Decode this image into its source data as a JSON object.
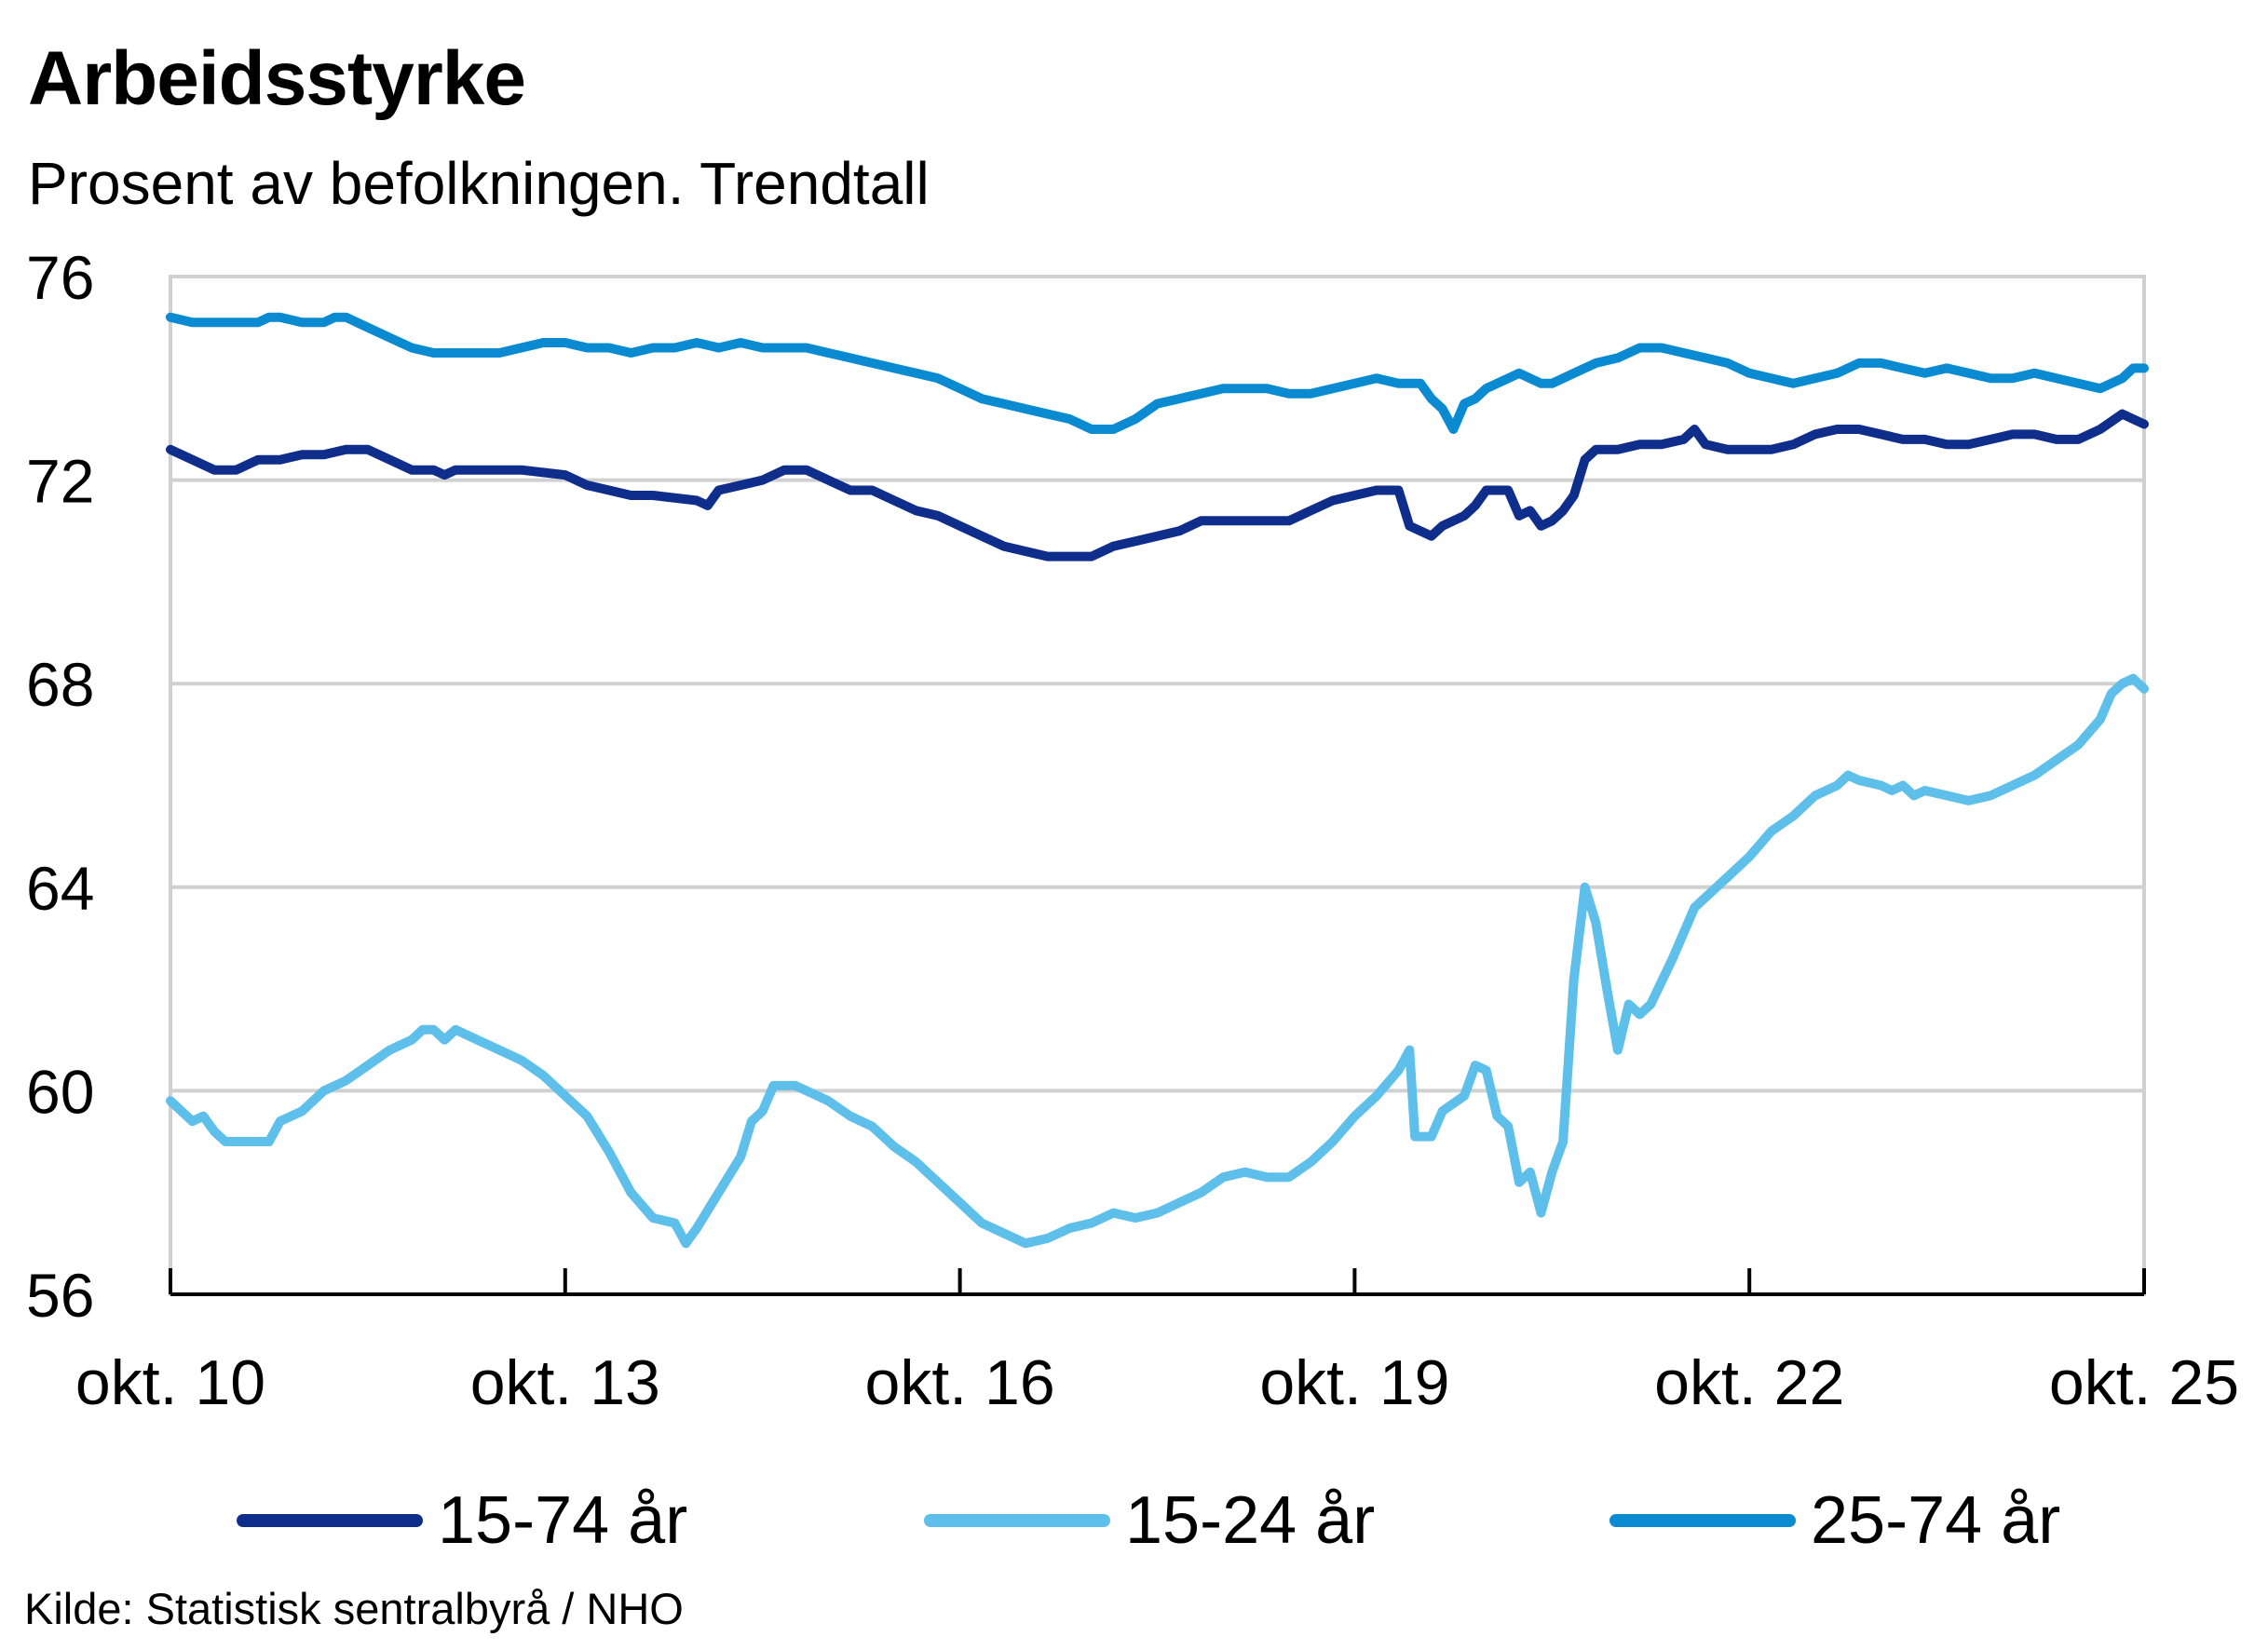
{
  "chart_data": {
    "type": "line",
    "title": "Arbeidsstyrke",
    "subtitle": "Prosent av befolkningen. Trendtall",
    "source": "Kilde: Statistisk sentralbyrå / NHO",
    "ylim": [
      56,
      76
    ],
    "yticks": [
      56,
      60,
      64,
      68,
      72,
      76
    ],
    "xlim": [
      0,
      180
    ],
    "xticks": [
      {
        "x": 0,
        "label": "okt. 10"
      },
      {
        "x": 36,
        "label": "okt. 13"
      },
      {
        "x": 72,
        "label": "okt. 16"
      },
      {
        "x": 108,
        "label": "okt. 19"
      },
      {
        "x": 144,
        "label": "okt. 22"
      },
      {
        "x": 180,
        "label": "okt. 25"
      }
    ],
    "grid": true,
    "legend_position": "bottom",
    "series": [
      {
        "name": "15-74 år",
        "color": "#0f2d8a",
        "points": [
          [
            0,
            72.6
          ],
          [
            2,
            72.4
          ],
          [
            4,
            72.2
          ],
          [
            6,
            72.2
          ],
          [
            8,
            72.4
          ],
          [
            10,
            72.4
          ],
          [
            12,
            72.5
          ],
          [
            14,
            72.5
          ],
          [
            16,
            72.6
          ],
          [
            18,
            72.6
          ],
          [
            20,
            72.4
          ],
          [
            22,
            72.2
          ],
          [
            24,
            72.2
          ],
          [
            25,
            72.1
          ],
          [
            26,
            72.2
          ],
          [
            28,
            72.2
          ],
          [
            32,
            72.2
          ],
          [
            36,
            72.1
          ],
          [
            38,
            71.9
          ],
          [
            40,
            71.8
          ],
          [
            42,
            71.7
          ],
          [
            44,
            71.7
          ],
          [
            48,
            71.6
          ],
          [
            49,
            71.5
          ],
          [
            50,
            71.8
          ],
          [
            52,
            71.9
          ],
          [
            54,
            72.0
          ],
          [
            56,
            72.2
          ],
          [
            58,
            72.2
          ],
          [
            60,
            72.0
          ],
          [
            62,
            71.8
          ],
          [
            64,
            71.8
          ],
          [
            66,
            71.6
          ],
          [
            68,
            71.4
          ],
          [
            70,
            71.3
          ],
          [
            72,
            71.1
          ],
          [
            74,
            70.9
          ],
          [
            76,
            70.7
          ],
          [
            78,
            70.6
          ],
          [
            80,
            70.5
          ],
          [
            84,
            70.5
          ],
          [
            86,
            70.7
          ],
          [
            88,
            70.8
          ],
          [
            90,
            70.9
          ],
          [
            92,
            71.0
          ],
          [
            94,
            71.2
          ],
          [
            96,
            71.2
          ],
          [
            98,
            71.2
          ],
          [
            100,
            71.2
          ],
          [
            102,
            71.2
          ],
          [
            104,
            71.4
          ],
          [
            106,
            71.6
          ],
          [
            108,
            71.7
          ],
          [
            110,
            71.8
          ],
          [
            112,
            71.8
          ],
          [
            113,
            71.1
          ],
          [
            115,
            70.9
          ],
          [
            116,
            71.1
          ],
          [
            118,
            71.3
          ],
          [
            119,
            71.5
          ],
          [
            120,
            71.8
          ],
          [
            122,
            71.8
          ],
          [
            123,
            71.3
          ],
          [
            124,
            71.4
          ],
          [
            125,
            71.1
          ],
          [
            126,
            71.2
          ],
          [
            127,
            71.4
          ],
          [
            128,
            71.7
          ],
          [
            129,
            72.4
          ],
          [
            130,
            72.6
          ],
          [
            132,
            72.6
          ],
          [
            134,
            72.7
          ],
          [
            136,
            72.7
          ],
          [
            138,
            72.8
          ],
          [
            139,
            73.0
          ],
          [
            140,
            72.7
          ],
          [
            142,
            72.6
          ],
          [
            144,
            72.6
          ],
          [
            146,
            72.6
          ],
          [
            148,
            72.7
          ],
          [
            150,
            72.9
          ],
          [
            152,
            73.0
          ],
          [
            154,
            73.0
          ],
          [
            156,
            72.9
          ],
          [
            158,
            72.8
          ],
          [
            160,
            72.8
          ],
          [
            162,
            72.7
          ],
          [
            164,
            72.7
          ],
          [
            166,
            72.8
          ],
          [
            168,
            72.9
          ],
          [
            170,
            72.9
          ],
          [
            172,
            72.8
          ],
          [
            174,
            72.8
          ],
          [
            176,
            73.0
          ],
          [
            178,
            73.3
          ],
          [
            180,
            73.1
          ]
        ]
      },
      {
        "name": "15-24 år",
        "color": "#5ec0ea",
        "points": [
          [
            0,
            59.8
          ],
          [
            1,
            59.6
          ],
          [
            2,
            59.4
          ],
          [
            3,
            59.5
          ],
          [
            4,
            59.2
          ],
          [
            5,
            59.0
          ],
          [
            6,
            59.0
          ],
          [
            8,
            59.0
          ],
          [
            9,
            59.0
          ],
          [
            10,
            59.4
          ],
          [
            12,
            59.6
          ],
          [
            14,
            60.0
          ],
          [
            16,
            60.2
          ],
          [
            18,
            60.5
          ],
          [
            20,
            60.8
          ],
          [
            22,
            61.0
          ],
          [
            23,
            61.2
          ],
          [
            24,
            61.2
          ],
          [
            25,
            61.0
          ],
          [
            26,
            61.2
          ],
          [
            28,
            61.0
          ],
          [
            30,
            60.8
          ],
          [
            32,
            60.6
          ],
          [
            34,
            60.3
          ],
          [
            36,
            59.9
          ],
          [
            38,
            59.5
          ],
          [
            40,
            58.8
          ],
          [
            42,
            58.0
          ],
          [
            44,
            57.5
          ],
          [
            46,
            57.4
          ],
          [
            47,
            57.0
          ],
          [
            48,
            57.3
          ],
          [
            50,
            58.0
          ],
          [
            52,
            58.7
          ],
          [
            53,
            59.4
          ],
          [
            54,
            59.6
          ],
          [
            55,
            60.1
          ],
          [
            57,
            60.1
          ],
          [
            58,
            60.0
          ],
          [
            60,
            59.8
          ],
          [
            62,
            59.5
          ],
          [
            64,
            59.3
          ],
          [
            66,
            58.9
          ],
          [
            68,
            58.6
          ],
          [
            70,
            58.2
          ],
          [
            72,
            57.8
          ],
          [
            74,
            57.4
          ],
          [
            76,
            57.2
          ],
          [
            78,
            57.0
          ],
          [
            80,
            57.1
          ],
          [
            82,
            57.3
          ],
          [
            84,
            57.4
          ],
          [
            86,
            57.6
          ],
          [
            88,
            57.5
          ],
          [
            90,
            57.6
          ],
          [
            92,
            57.8
          ],
          [
            94,
            58.0
          ],
          [
            96,
            58.3
          ],
          [
            98,
            58.4
          ],
          [
            100,
            58.3
          ],
          [
            102,
            58.3
          ],
          [
            104,
            58.6
          ],
          [
            106,
            59.0
          ],
          [
            108,
            59.5
          ],
          [
            110,
            59.9
          ],
          [
            112,
            60.4
          ],
          [
            113,
            60.8
          ],
          [
            113.5,
            59.1
          ],
          [
            115,
            59.1
          ],
          [
            116,
            59.6
          ],
          [
            118,
            59.9
          ],
          [
            119,
            60.5
          ],
          [
            120,
            60.4
          ],
          [
            121,
            59.5
          ],
          [
            122,
            59.3
          ],
          [
            123,
            58.2
          ],
          [
            124,
            58.4
          ],
          [
            125,
            57.6
          ],
          [
            126,
            58.4
          ],
          [
            127,
            59.0
          ],
          [
            128,
            62.2
          ],
          [
            129,
            64.0
          ],
          [
            130,
            63.3
          ],
          [
            131,
            62.0
          ],
          [
            132,
            60.8
          ],
          [
            133,
            61.7
          ],
          [
            134,
            61.5
          ],
          [
            135,
            61.7
          ],
          [
            137,
            62.6
          ],
          [
            139,
            63.6
          ],
          [
            140,
            63.8
          ],
          [
            142,
            64.2
          ],
          [
            144,
            64.6
          ],
          [
            146,
            65.1
          ],
          [
            148,
            65.4
          ],
          [
            150,
            65.8
          ],
          [
            152,
            66.0
          ],
          [
            153,
            66.2
          ],
          [
            154,
            66.1
          ],
          [
            156,
            66.0
          ],
          [
            157,
            65.9
          ],
          [
            158,
            66.0
          ],
          [
            159,
            65.8
          ],
          [
            160,
            65.9
          ],
          [
            162,
            65.8
          ],
          [
            164,
            65.7
          ],
          [
            166,
            65.8
          ],
          [
            168,
            66.0
          ],
          [
            170,
            66.2
          ],
          [
            172,
            66.5
          ],
          [
            174,
            66.8
          ],
          [
            176,
            67.3
          ],
          [
            177,
            67.8
          ],
          [
            178,
            68.0
          ],
          [
            179,
            68.1
          ],
          [
            180,
            67.9
          ]
        ]
      },
      {
        "name": "25-74 år",
        "color": "#0a8ad0",
        "points": [
          [
            0,
            75.2
          ],
          [
            2,
            75.1
          ],
          [
            4,
            75.1
          ],
          [
            6,
            75.1
          ],
          [
            8,
            75.1
          ],
          [
            9,
            75.2
          ],
          [
            10,
            75.2
          ],
          [
            12,
            75.1
          ],
          [
            14,
            75.1
          ],
          [
            15,
            75.2
          ],
          [
            16,
            75.2
          ],
          [
            18,
            75.0
          ],
          [
            20,
            74.8
          ],
          [
            22,
            74.6
          ],
          [
            24,
            74.5
          ],
          [
            26,
            74.5
          ],
          [
            28,
            74.5
          ],
          [
            30,
            74.5
          ],
          [
            32,
            74.6
          ],
          [
            34,
            74.7
          ],
          [
            36,
            74.7
          ],
          [
            38,
            74.6
          ],
          [
            40,
            74.6
          ],
          [
            42,
            74.5
          ],
          [
            44,
            74.6
          ],
          [
            46,
            74.6
          ],
          [
            48,
            74.7
          ],
          [
            50,
            74.6
          ],
          [
            52,
            74.7
          ],
          [
            54,
            74.6
          ],
          [
            56,
            74.6
          ],
          [
            58,
            74.6
          ],
          [
            60,
            74.5
          ],
          [
            62,
            74.4
          ],
          [
            64,
            74.3
          ],
          [
            66,
            74.2
          ],
          [
            68,
            74.1
          ],
          [
            70,
            74.0
          ],
          [
            72,
            73.8
          ],
          [
            74,
            73.6
          ],
          [
            76,
            73.5
          ],
          [
            78,
            73.4
          ],
          [
            80,
            73.3
          ],
          [
            82,
            73.2
          ],
          [
            84,
            73.0
          ],
          [
            86,
            73.0
          ],
          [
            88,
            73.2
          ],
          [
            90,
            73.5
          ],
          [
            92,
            73.6
          ],
          [
            94,
            73.7
          ],
          [
            96,
            73.8
          ],
          [
            98,
            73.8
          ],
          [
            100,
            73.8
          ],
          [
            102,
            73.7
          ],
          [
            104,
            73.7
          ],
          [
            106,
            73.8
          ],
          [
            108,
            73.9
          ],
          [
            110,
            74.0
          ],
          [
            112,
            73.9
          ],
          [
            114,
            73.9
          ],
          [
            115,
            73.6
          ],
          [
            116,
            73.4
          ],
          [
            117,
            73.0
          ],
          [
            118,
            73.5
          ],
          [
            119,
            73.6
          ],
          [
            120,
            73.8
          ],
          [
            122,
            74.0
          ],
          [
            123,
            74.1
          ],
          [
            124,
            74.0
          ],
          [
            125,
            73.9
          ],
          [
            126,
            73.9
          ],
          [
            127,
            74.0
          ],
          [
            128,
            74.1
          ],
          [
            130,
            74.3
          ],
          [
            132,
            74.4
          ],
          [
            134,
            74.6
          ],
          [
            136,
            74.6
          ],
          [
            138,
            74.5
          ],
          [
            140,
            74.4
          ],
          [
            142,
            74.3
          ],
          [
            144,
            74.1
          ],
          [
            146,
            74.0
          ],
          [
            148,
            73.9
          ],
          [
            150,
            74.0
          ],
          [
            152,
            74.1
          ],
          [
            154,
            74.3
          ],
          [
            156,
            74.3
          ],
          [
            158,
            74.2
          ],
          [
            160,
            74.1
          ],
          [
            162,
            74.2
          ],
          [
            164,
            74.1
          ],
          [
            166,
            74.0
          ],
          [
            168,
            74.0
          ],
          [
            170,
            74.1
          ],
          [
            172,
            74.0
          ],
          [
            174,
            73.9
          ],
          [
            176,
            73.8
          ],
          [
            178,
            74.0
          ],
          [
            179,
            74.2
          ],
          [
            180,
            74.2
          ]
        ]
      }
    ]
  }
}
